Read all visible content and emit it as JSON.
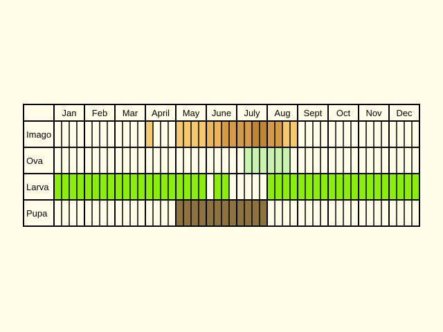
{
  "chart_data": {
    "type": "table",
    "months": [
      "Jan",
      "Feb",
      "Mar",
      "April",
      "May",
      "June",
      "July",
      "Aug",
      "Sept",
      "Oct",
      "Nov",
      "Dec"
    ],
    "cells_per_month": 4,
    "stages": [
      {
        "name": "Imago",
        "periods": [
          {
            "start_month": 4.0,
            "end_month": 4.25,
            "color": "#f5c870"
          },
          {
            "start_month": 5.0,
            "end_month": 6.0,
            "color": "#f5c870"
          },
          {
            "start_month": 6.0,
            "end_month": 6.5,
            "color": "#ebb560"
          },
          {
            "start_month": 6.5,
            "end_month": 7.5,
            "color": "#d49a4c"
          },
          {
            "start_month": 7.5,
            "end_month": 8.0,
            "color": "#bd8535"
          },
          {
            "start_month": 8.0,
            "end_month": 8.5,
            "color": "#d49a4c"
          },
          {
            "start_month": 8.5,
            "end_month": 9.0,
            "color": "#f5c870"
          }
        ]
      },
      {
        "name": "Ova",
        "periods": [
          {
            "start_month": 7.25,
            "end_month": 8.75,
            "color": "#c8f2b0"
          }
        ]
      },
      {
        "name": "Larva",
        "periods": [
          {
            "start_month": 1.0,
            "end_month": 6.0,
            "color": "#8bec0e"
          },
          {
            "start_month": 6.25,
            "end_month": 6.75,
            "color": "#8bec0e"
          },
          {
            "start_month": 8.0,
            "end_month": 13.0,
            "color": "#8bec0e"
          }
        ]
      },
      {
        "name": "Pupa",
        "periods": [
          {
            "start_month": 5.0,
            "end_month": 8.0,
            "color": "#8b7240"
          }
        ]
      }
    ]
  }
}
